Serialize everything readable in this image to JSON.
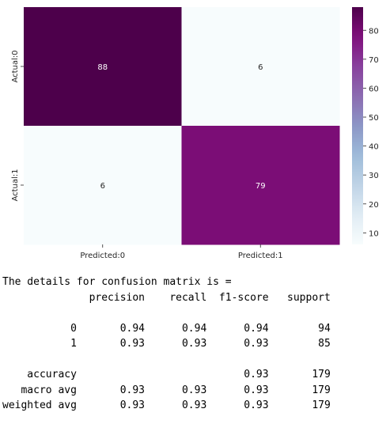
{
  "chart_data": {
    "type": "heatmap",
    "x_labels": [
      "Predicted:0",
      "Predicted:1"
    ],
    "y_labels": [
      "Actual:0",
      "Actual:1"
    ],
    "values": [
      [
        88,
        6
      ],
      [
        6,
        79
      ]
    ],
    "colormap": "BuPu",
    "colorbar": {
      "range": [
        6,
        88
      ],
      "ticks": [
        "10",
        "20",
        "30",
        "40",
        "50",
        "60",
        "70",
        "80"
      ]
    },
    "colors": {
      "low": "#f7fcfd",
      "high": "#4d004b",
      "dark_text": "#262626",
      "light_text": "#ffffff"
    }
  },
  "report": {
    "heading": "The details for confusion matrix is =",
    "header": "              precision    recall  f1-score   support",
    "rows": [
      "           0       0.94      0.94      0.94        94",
      "           1       0.93      0.93      0.93        85",
      "    accuracy                           0.93       179",
      "   macro avg       0.93      0.93      0.93       179",
      "weighted avg       0.93      0.93      0.93       179"
    ]
  }
}
